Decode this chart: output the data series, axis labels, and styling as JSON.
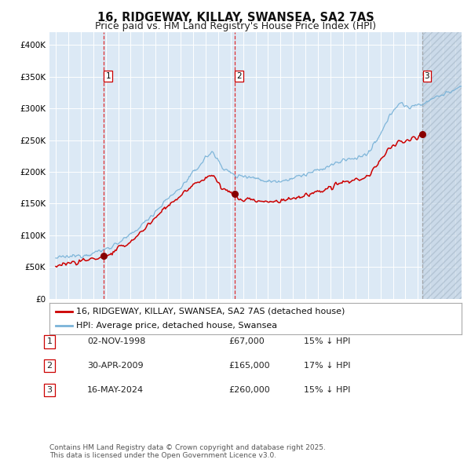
{
  "title": "16, RIDGEWAY, KILLAY, SWANSEA, SA2 7AS",
  "subtitle": "Price paid vs. HM Land Registry's House Price Index (HPI)",
  "ylim": [
    0,
    420000
  ],
  "yticks": [
    0,
    50000,
    100000,
    150000,
    200000,
    250000,
    300000,
    350000,
    400000
  ],
  "ytick_labels": [
    "£0",
    "£50K",
    "£100K",
    "£150K",
    "£200K",
    "£250K",
    "£300K",
    "£350K",
    "£400K"
  ],
  "xlim_start": 1994.5,
  "xlim_end": 2027.5,
  "background_color": "#ffffff",
  "plot_bg_color": "#dce9f5",
  "grid_color": "#ffffff",
  "hpi_line_color": "#7ab3d8",
  "price_line_color": "#cc0000",
  "sale_marker_color": "#880000",
  "legend_label_price": "16, RIDGEWAY, KILLAY, SWANSEA, SA2 7AS (detached house)",
  "legend_label_hpi": "HPI: Average price, detached house, Swansea",
  "sale1_date": 1998.84,
  "sale1_price": 67000,
  "sale2_date": 2009.33,
  "sale2_price": 165000,
  "sale3_date": 2024.37,
  "sale3_price": 260000,
  "table_rows": [
    [
      "1",
      "02-NOV-1998",
      "£67,000",
      "15% ↓ HPI"
    ],
    [
      "2",
      "30-APR-2009",
      "£165,000",
      "17% ↓ HPI"
    ],
    [
      "3",
      "16-MAY-2024",
      "£260,000",
      "15% ↓ HPI"
    ]
  ],
  "footnote": "Contains HM Land Registry data © Crown copyright and database right 2025.\nThis data is licensed under the Open Government Licence v3.0.",
  "title_fontsize": 10.5,
  "subtitle_fontsize": 9,
  "tick_fontsize": 7.5,
  "legend_fontsize": 8,
  "table_fontsize": 8,
  "footnote_fontsize": 6.5
}
